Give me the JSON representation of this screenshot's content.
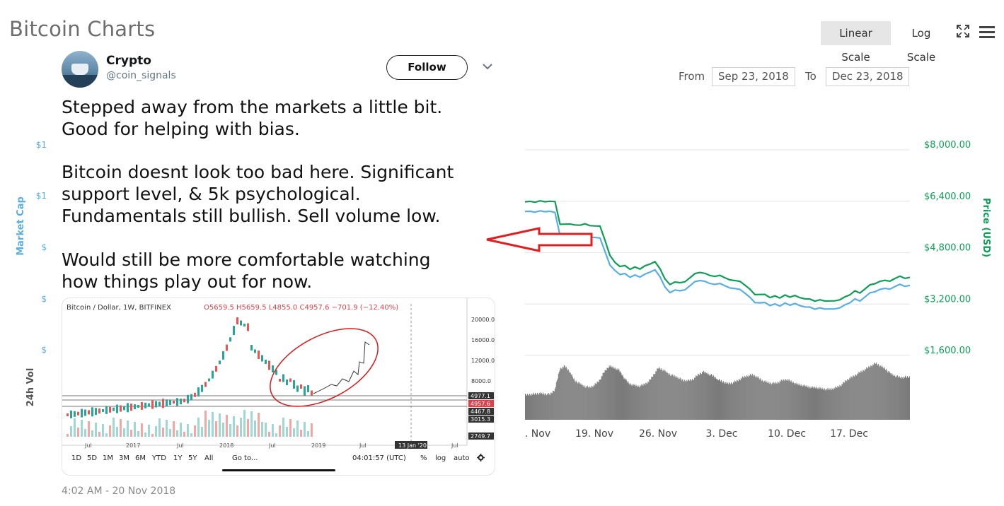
{
  "page": {
    "title": "Bitcoin Charts",
    "linear_scale": "Linear Scale",
    "log_scale": "Log Scale",
    "from_label": "From",
    "from_value": "Sep 23, 2018",
    "to_label": "To",
    "to_value": "Dec 23, 2018"
  },
  "chart_left_axis": {
    "market_cap_label": "Market Cap",
    "vol_label": "24h Vol",
    "ticks": [
      "$1",
      "$1",
      "$",
      "$",
      "$"
    ]
  },
  "chart_data": {
    "type": "line",
    "ylabel": "Price (USD)",
    "ylim": [
      0,
      8000
    ],
    "y_ticks": [
      "$8,000.00",
      "$6,400.00",
      "$4,800.00",
      "$3,200.00",
      "$1,600.00"
    ],
    "x_ticks": [
      ". Nov",
      "19. Nov",
      "26. Nov",
      "3. Dec",
      "10. Dec",
      "17. Dec"
    ],
    "series": [
      {
        "color": "#0f9d58",
        "values": [
          6400,
          6390,
          6380,
          6400,
          6390,
          6380,
          6390,
          5700,
          5680,
          5700,
          5650,
          5660,
          5680,
          5640,
          5650,
          5620,
          5200,
          4700,
          4500,
          4350,
          4400,
          4300,
          4350,
          4300,
          4380,
          4450,
          4500,
          4300,
          4000,
          3800,
          3900,
          3850,
          3900,
          4000,
          4150,
          4200,
          4150,
          4100,
          4050,
          4100,
          4000,
          3950,
          3950,
          3900,
          3800,
          3650,
          3500,
          3480,
          3500,
          3420,
          3450,
          3400,
          3470,
          3420,
          3450,
          3400,
          3380,
          3350,
          3300,
          3320,
          3300,
          3280,
          3300,
          3350,
          3420,
          3500,
          3600,
          3550,
          3650,
          3800,
          3850,
          3900,
          3950,
          3900,
          4000,
          4050,
          4000,
          4050
        ]
      },
      {
        "color": "#5aaee0",
        "values": [
          6100,
          6080,
          6070,
          6090,
          6080,
          6070,
          6050,
          5350,
          5320,
          5340,
          5300,
          5300,
          5320,
          5280,
          5290,
          5250,
          4850,
          4400,
          4250,
          4100,
          4150,
          4050,
          4100,
          4050,
          4120,
          4200,
          4250,
          4050,
          3750,
          3550,
          3650,
          3600,
          3650,
          3750,
          3900,
          3950,
          3900,
          3850,
          3800,
          3850,
          3750,
          3700,
          3700,
          3650,
          3550,
          3400,
          3250,
          3220,
          3250,
          3170,
          3200,
          3150,
          3220,
          3170,
          3200,
          3150,
          3130,
          3100,
          3050,
          3070,
          3050,
          3030,
          3050,
          3100,
          3170,
          3250,
          3350,
          3300,
          3400,
          3550,
          3600,
          3650,
          3700,
          3650,
          3750,
          3800,
          3750,
          3800
        ]
      }
    ],
    "volume_values": [
      0.45,
      0.46,
      0.47,
      0.48,
      0.47,
      0.46,
      0.55,
      0.9,
      0.95,
      0.85,
      0.7,
      0.65,
      0.6,
      0.58,
      0.62,
      0.7,
      0.85,
      0.95,
      0.92,
      0.88,
      0.75,
      0.65,
      0.62,
      0.6,
      0.63,
      0.68,
      0.8,
      0.92,
      0.88,
      0.82,
      0.78,
      0.75,
      0.7,
      0.7,
      0.72,
      0.8,
      0.85,
      0.82,
      0.78,
      0.72,
      0.68,
      0.65,
      0.66,
      0.7,
      0.75,
      0.78,
      0.8,
      0.76,
      0.7,
      0.67,
      0.65,
      0.66,
      0.7,
      0.72,
      0.68,
      0.64,
      0.62,
      0.6,
      0.58,
      0.58,
      0.56,
      0.55,
      0.55,
      0.58,
      0.62,
      0.7,
      0.75,
      0.8,
      0.85,
      0.9,
      0.95,
      1.0,
      0.95,
      0.9,
      0.82,
      0.78,
      0.75,
      0.76
    ]
  },
  "tweet": {
    "name": "Crypto",
    "handle": "@coin_signals",
    "follow": "Follow",
    "line1": "Stepped away from the markets a little bit.",
    "line2": "Good for helping with bias.",
    "line3": "Bitcoin doesnt look too bad here. Significant",
    "line4": "support level, & 5k psychological.",
    "line5": "Fundamentals still bullish. Sell volume low.",
    "line6": "Would still be more comfortable watching",
    "line7": "how things play out for now.",
    "timestamp": "4:02 AM - 20 Nov 2018"
  },
  "tweet_chart": {
    "header": "Bitcoin / Dollar, 1W, BITFINEX",
    "ohlc": "O5659.5 H5659.5 L4855.0 C4957.6 −701.9 (−12.40%)",
    "y_labels": [
      "20000.0",
      "16000.0",
      "12000.0",
      "8000.0"
    ],
    "price_tags": [
      "4977.1",
      "4957.6",
      "4467.8",
      "3015.3",
      "2749.7"
    ],
    "x_labels": [
      "Jul",
      "2017",
      "Jul",
      "2018",
      "Jul",
      "2019",
      "Jul",
      "13 Jan '20",
      "Jul"
    ],
    "timeframes": [
      "1D",
      "5D",
      "1M",
      "3M",
      "6M",
      "YTD",
      "1Y",
      "5Y",
      "All"
    ],
    "goto": "Go to...",
    "clock": "04:01:57 (UTC)",
    "pct": "%",
    "log": "log",
    "auto": "auto"
  }
}
